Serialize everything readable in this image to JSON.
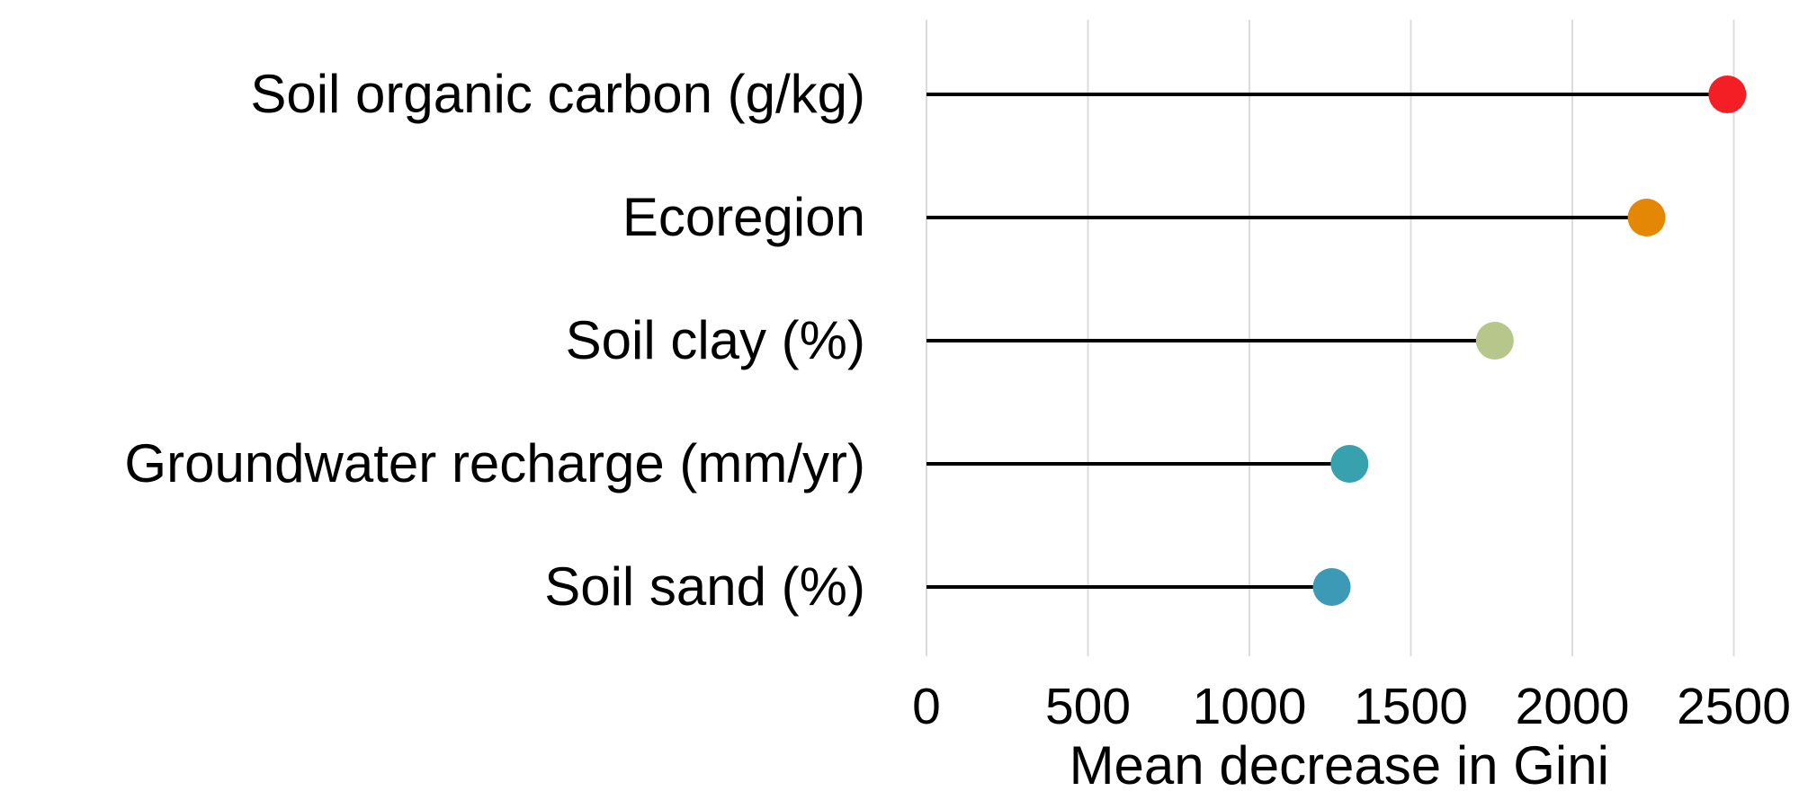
{
  "chart_data": {
    "type": "lollipop",
    "title": "",
    "xlabel": "Mean decrease in Gini",
    "ylabel": "",
    "xlim": [
      0,
      2600
    ],
    "xticks": [
      0,
      500,
      1000,
      1500,
      2000,
      2500
    ],
    "xtick_labels": [
      "0",
      "500",
      "1000",
      "1500",
      "2000",
      "2500"
    ],
    "grid": "vertical",
    "legend": "none",
    "categories": [
      "Soil organic carbon (g/kg)",
      "Ecoregion",
      "Soil clay (%)",
      "Groundwater recharge (mm/yr)",
      "Soil sand (%)"
    ],
    "values": [
      2480,
      2230,
      1760,
      1310,
      1255
    ],
    "colors": [
      "#f41f24",
      "#e48705",
      "#b7c78b",
      "#37a1ad",
      "#3c9ab6"
    ]
  }
}
